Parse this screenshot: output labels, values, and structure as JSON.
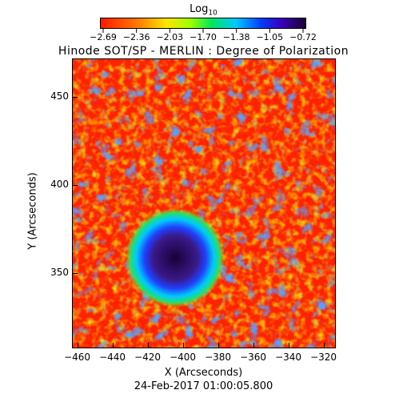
{
  "colorbar": {
    "title": "Log",
    "title_sub": "10",
    "ticks": [
      "-2.69",
      "-2.36",
      "-2.03",
      "-1.70",
      "-1.38",
      "-1.05",
      "-0.72"
    ],
    "colors": [
      "#ff1a00",
      "#ff7a00",
      "#ffe600",
      "#9cff00",
      "#00e85a",
      "#00c8ff",
      "#0040ff",
      "#3a00c0",
      "#1b0030"
    ]
  },
  "title": "Hinode SOT/SP - MERLIN : Degree of Polarization",
  "xaxis": {
    "label": "X (Arcseconds)",
    "ticks": [
      "-460",
      "-440",
      "-420",
      "-400",
      "-380",
      "-360",
      "-340",
      "-320"
    ],
    "range": [
      -463,
      -313
    ]
  },
  "yaxis": {
    "label": "Y (Arcseconds)",
    "ticks": [
      "350",
      "400",
      "450"
    ],
    "range": [
      307,
      472
    ]
  },
  "footer": {
    "date": "24-Feb-2017 01:00:05.800"
  }
}
